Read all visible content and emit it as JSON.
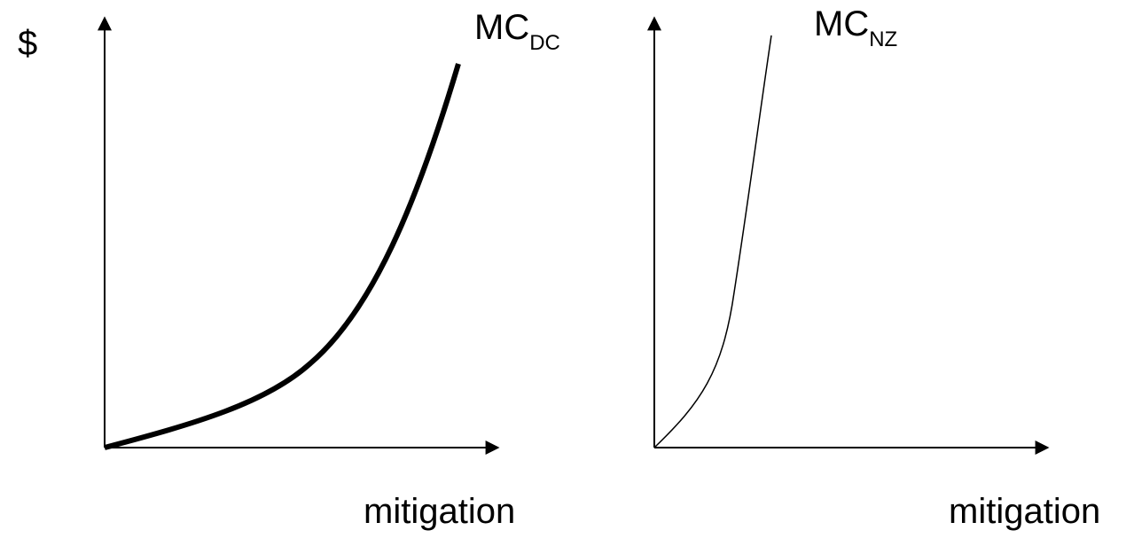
{
  "panels": [
    {
      "y_label": "$",
      "curve_label": "MC",
      "curve_label_sub": "DC",
      "x_label": "mitigation"
    },
    {
      "curve_label": "MC",
      "curve_label_sub": "NZ",
      "x_label": "mitigation"
    }
  ]
}
